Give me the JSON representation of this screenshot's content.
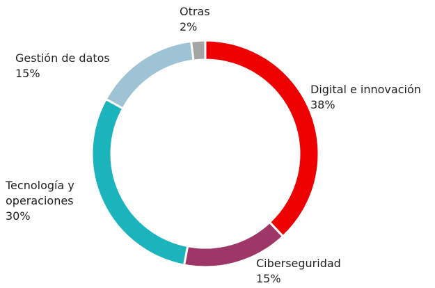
{
  "chart_data": {
    "type": "donut",
    "categories": [
      "Digital e innovación",
      "Ciberseguridad",
      "Tecnología y\noperaciones",
      "Gestión de datos",
      "Otras"
    ],
    "values": [
      38,
      15,
      30,
      15,
      2
    ],
    "value_labels": [
      "38%",
      "15%",
      "30%",
      "15%",
      "2%"
    ],
    "colors": [
      "#ec0000",
      "#9e3667",
      "#1bb3bc",
      "#9dc3d4",
      "#a5a5a5"
    ]
  }
}
